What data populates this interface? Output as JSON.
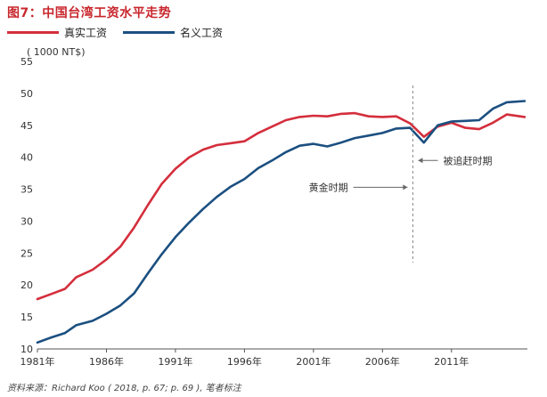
{
  "title": "图7：中国台湾工资水平走势",
  "unit_label": "( 1000 NT$)",
  "source": "资料来源：Richard Koo ( 2018, p. 67; p. 69 ), 笔者标注",
  "colors": {
    "real": "#d42e3c",
    "nominal": "#1b4f80",
    "title": "#c8282e",
    "divider": "#888888"
  },
  "chart_data": {
    "type": "line",
    "xlim": [
      1981,
      2016.5
    ],
    "ylim": [
      10,
      55
    ],
    "yticks": [
      10,
      15,
      20,
      25,
      30,
      35,
      40,
      45,
      50,
      55
    ],
    "xticks": [
      {
        "value": 1981,
        "label": "1981年"
      },
      {
        "value": 1986,
        "label": "1986年"
      },
      {
        "value": 1991,
        "label": "1991年"
      },
      {
        "value": 1996,
        "label": "1996年"
      },
      {
        "value": 2001,
        "label": "2001年"
      },
      {
        "value": 2006,
        "label": "2006年"
      },
      {
        "value": 2011,
        "label": "2011年"
      }
    ],
    "legend_position": "top-left",
    "grid": false,
    "series": [
      {
        "name": "真实工资",
        "color": "#d42e3c",
        "points": [
          [
            1981,
            17.8
          ],
          [
            1982,
            18.6
          ],
          [
            1983,
            19.4
          ],
          [
            1983.8,
            21.2
          ],
          [
            1985,
            22.4
          ],
          [
            1986,
            24.0
          ],
          [
            1987,
            26.0
          ],
          [
            1988,
            29.0
          ],
          [
            1989,
            32.5
          ],
          [
            1990,
            35.8
          ],
          [
            1991,
            38.2
          ],
          [
            1992,
            40.0
          ],
          [
            1993,
            41.2
          ],
          [
            1994,
            41.9
          ],
          [
            1995,
            42.2
          ],
          [
            1996,
            42.5
          ],
          [
            1997,
            43.8
          ],
          [
            1998,
            44.8
          ],
          [
            1999,
            45.8
          ],
          [
            2000,
            46.3
          ],
          [
            2001,
            46.5
          ],
          [
            2002,
            46.4
          ],
          [
            2003,
            46.8
          ],
          [
            2004,
            46.9
          ],
          [
            2005,
            46.4
          ],
          [
            2006,
            46.3
          ],
          [
            2007,
            46.4
          ],
          [
            2008,
            45.3
          ],
          [
            2009,
            43.2
          ],
          [
            2010,
            44.8
          ],
          [
            2011,
            45.4
          ],
          [
            2012,
            44.6
          ],
          [
            2013,
            44.4
          ],
          [
            2014,
            45.4
          ],
          [
            2015,
            46.7
          ],
          [
            2016.3,
            46.3
          ]
        ]
      },
      {
        "name": "名义工资",
        "color": "#1b4f80",
        "points": [
          [
            1981,
            11.0
          ],
          [
            1982,
            11.8
          ],
          [
            1983,
            12.5
          ],
          [
            1983.8,
            13.7
          ],
          [
            1985,
            14.4
          ],
          [
            1986,
            15.5
          ],
          [
            1987,
            16.8
          ],
          [
            1988,
            18.7
          ],
          [
            1989,
            21.8
          ],
          [
            1990,
            24.8
          ],
          [
            1991,
            27.5
          ],
          [
            1992,
            29.8
          ],
          [
            1993,
            31.9
          ],
          [
            1994,
            33.8
          ],
          [
            1995,
            35.4
          ],
          [
            1996,
            36.6
          ],
          [
            1997,
            38.3
          ],
          [
            1998,
            39.5
          ],
          [
            1999,
            40.8
          ],
          [
            2000,
            41.8
          ],
          [
            2001,
            42.1
          ],
          [
            2002,
            41.7
          ],
          [
            2003,
            42.3
          ],
          [
            2004,
            43.0
          ],
          [
            2005,
            43.4
          ],
          [
            2006,
            43.8
          ],
          [
            2007,
            44.5
          ],
          [
            2008,
            44.6
          ],
          [
            2009,
            42.3
          ],
          [
            2010,
            45.0
          ],
          [
            2011,
            45.6
          ],
          [
            2012,
            45.7
          ],
          [
            2013,
            45.8
          ],
          [
            2014,
            47.6
          ],
          [
            2015,
            48.6
          ],
          [
            2016.3,
            48.8
          ]
        ]
      }
    ],
    "divider_x": 2008.2,
    "annotations": [
      {
        "text": "黄金时期",
        "x": 2003.5,
        "y": 35.3,
        "arrow": "right"
      },
      {
        "text": "被追赶时期",
        "x": 2010.4,
        "y": 39.5,
        "arrow": "left"
      }
    ]
  }
}
